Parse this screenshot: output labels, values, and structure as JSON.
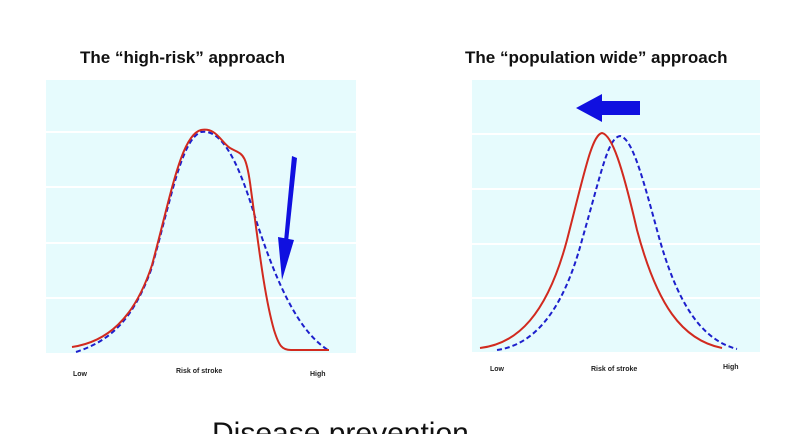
{
  "slide": {
    "footer_title": "Disease prevention"
  },
  "colors": {
    "plot_background": "#e6fbfd",
    "gridline": "#ffffff",
    "observed_curve": "#d12a1f",
    "baseline_curve": "#1d1fcc",
    "arrow": "#1010e0"
  },
  "panels": [
    {
      "title": "The “high-risk” approach",
      "x_axis": {
        "low_label": "Low",
        "middle_label": "Risk of stroke",
        "high_label": "High"
      },
      "curves": [
        {
          "name": "baseline distribution",
          "style": "dashed",
          "color_key": "baseline_curve"
        },
        {
          "name": "after high-risk intervention",
          "style": "solid",
          "color_key": "observed_curve"
        }
      ],
      "arrow": {
        "direction": "down",
        "icon": "down-arrow-icon"
      }
    },
    {
      "title": "The “population wide” approach",
      "x_axis": {
        "low_label": "Low",
        "middle_label": "Risk of stroke",
        "high_label": "High"
      },
      "curves": [
        {
          "name": "baseline distribution",
          "style": "dashed",
          "color_key": "baseline_curve"
        },
        {
          "name": "after population-wide shift",
          "style": "solid",
          "color_key": "observed_curve"
        }
      ],
      "arrow": {
        "direction": "left",
        "icon": "left-arrow-icon"
      }
    }
  ]
}
